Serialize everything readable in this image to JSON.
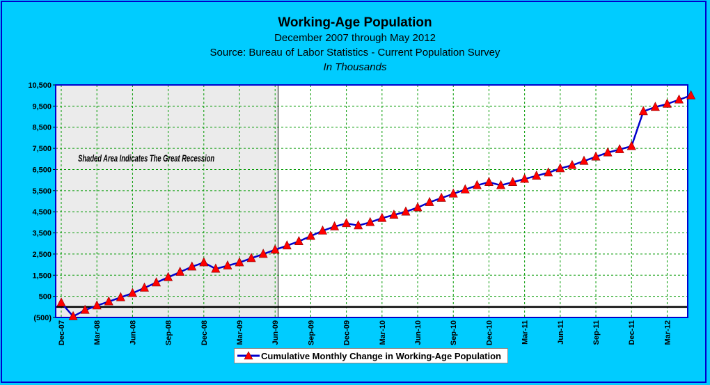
{
  "chart_data": {
    "type": "line",
    "title": "Working-Age Population",
    "subtitle_lines": [
      "December 2007 through May 2012",
      "Source: Bureau of Labor Statistics - Current Population Survey",
      "In Thousands"
    ],
    "annotation": "Shaded Area Indicates The Great Recession",
    "ylim": [
      -500,
      10500
    ],
    "yticks": [
      "(500)",
      "500",
      "1,500",
      "2,500",
      "3,500",
      "4,500",
      "5,500",
      "6,500",
      "7,500",
      "8,500",
      "9,500",
      "10,500"
    ],
    "ytick_values": [
      -500,
      500,
      1500,
      2500,
      3500,
      4500,
      5500,
      6500,
      7500,
      8500,
      9500,
      10500
    ],
    "xtick_labels": [
      "Dec-07",
      "Mar-08",
      "Jun-08",
      "Sep-08",
      "Dec-08",
      "Mar-09",
      "Jun-09",
      "Sep-09",
      "Dec-09",
      "Mar-10",
      "Jun-10",
      "Sep-10",
      "Dec-10",
      "Mar-11",
      "Jun-11",
      "Sep-11",
      "Dec-11",
      "Mar-12"
    ],
    "shaded_range": [
      "Dec-07",
      "Jun-09"
    ],
    "grid": true,
    "legend_position": "bottom",
    "series": [
      {
        "name": "Cumulative Monthly Change in Working-Age Population",
        "line_color": "#0000CC",
        "marker_color": "#FF0000",
        "x": [
          "Dec-07",
          "Jan-08",
          "Feb-08",
          "Mar-08",
          "Apr-08",
          "May-08",
          "Jun-08",
          "Jul-08",
          "Aug-08",
          "Sep-08",
          "Oct-08",
          "Nov-08",
          "Dec-08",
          "Jan-09",
          "Feb-09",
          "Mar-09",
          "Apr-09",
          "May-09",
          "Jun-09",
          "Jul-09",
          "Aug-09",
          "Sep-09",
          "Oct-09",
          "Nov-09",
          "Dec-09",
          "Jan-10",
          "Feb-10",
          "Mar-10",
          "Apr-10",
          "May-10",
          "Jun-10",
          "Jul-10",
          "Aug-10",
          "Sep-10",
          "Oct-10",
          "Nov-10",
          "Dec-10",
          "Jan-11",
          "Feb-11",
          "Mar-11",
          "Apr-11",
          "May-11",
          "Jun-11",
          "Jul-11",
          "Aug-11",
          "Sep-11",
          "Oct-11",
          "Nov-11",
          "Dec-11",
          "Jan-12",
          "Feb-12",
          "Mar-12",
          "Apr-12",
          "May-12"
        ],
        "values": [
          200,
          -450,
          -150,
          60,
          250,
          450,
          650,
          900,
          1150,
          1400,
          1650,
          1900,
          2100,
          1800,
          1950,
          2100,
          2300,
          2500,
          2700,
          2900,
          3100,
          3350,
          3600,
          3800,
          3950,
          3850,
          4000,
          4200,
          4350,
          4500,
          4700,
          4950,
          5150,
          5350,
          5550,
          5750,
          5900,
          5750,
          5900,
          6050,
          6200,
          6350,
          6550,
          6700,
          6900,
          7100,
          7300,
          7450,
          7600,
          9250,
          9450,
          9600,
          9800,
          10000
        ]
      }
    ]
  }
}
